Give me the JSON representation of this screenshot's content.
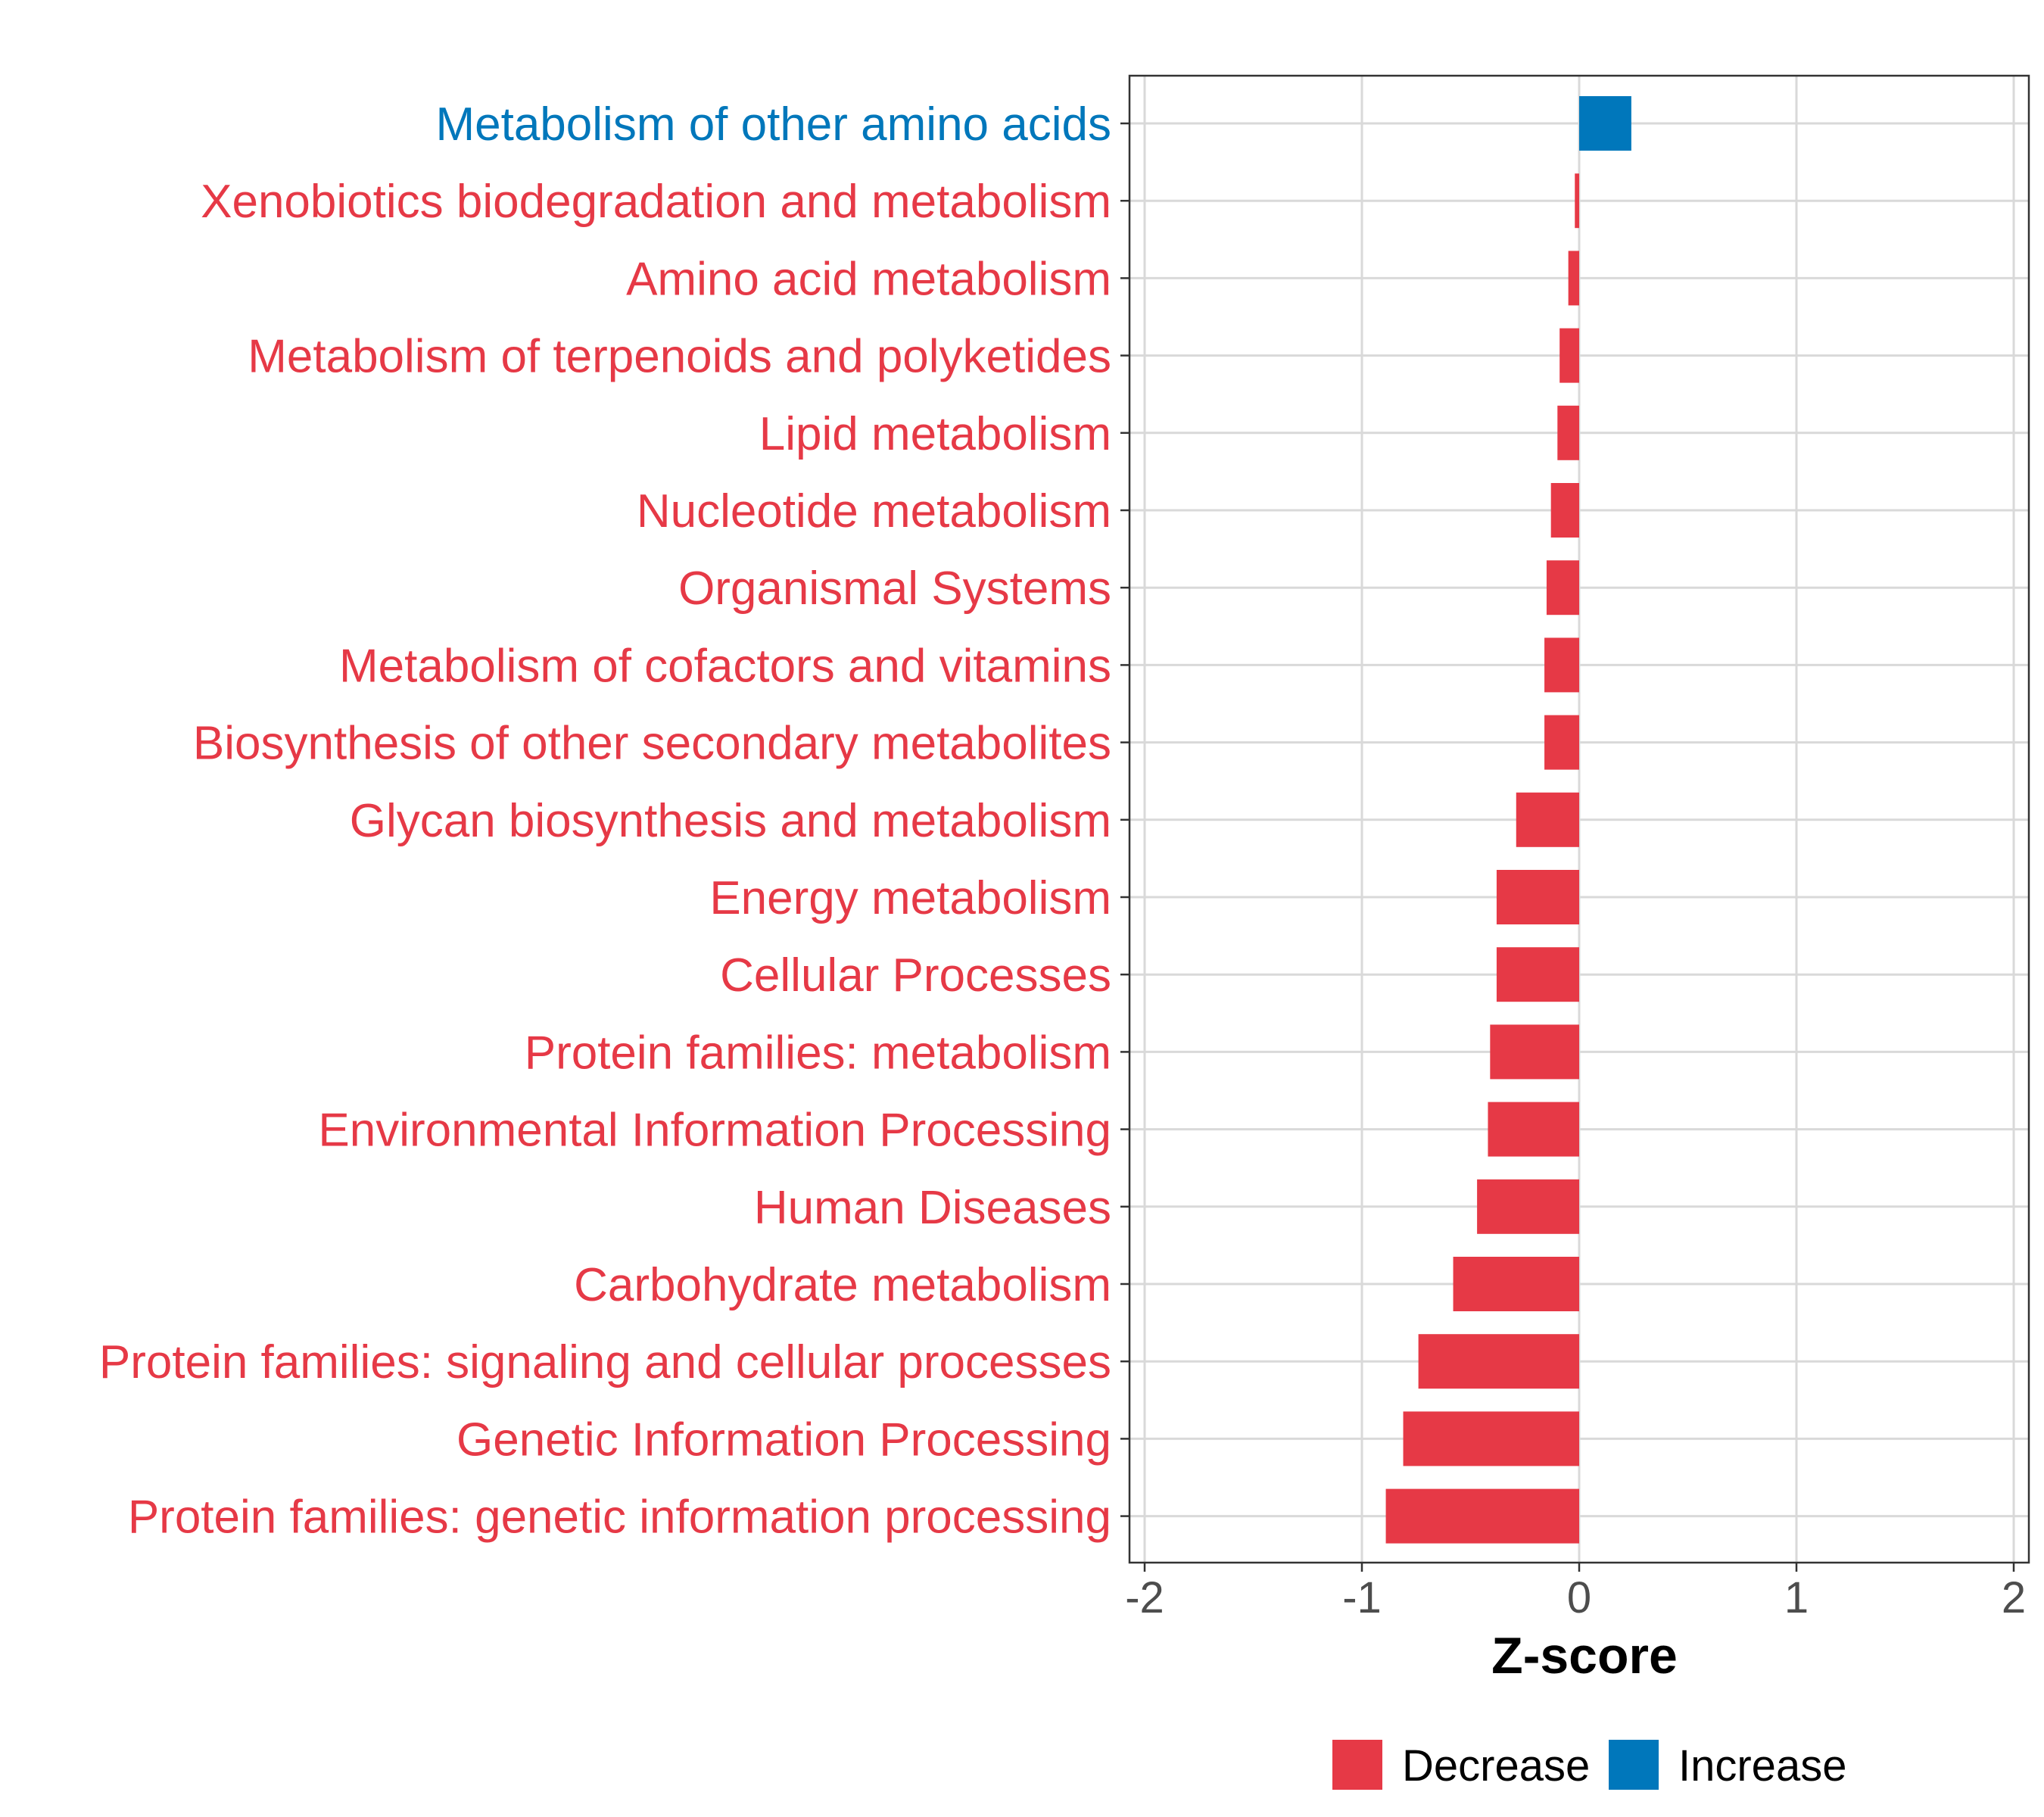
{
  "chart_data": {
    "type": "bar",
    "orientation": "horizontal",
    "xlabel": "Z-score",
    "xlim": [
      -2.0,
      2.0
    ],
    "xticks": [
      -2,
      -1,
      0,
      1,
      2
    ],
    "xtick_labels": [
      "-2",
      "-1",
      "0",
      "1",
      "2"
    ],
    "grid": true,
    "legend_position": "bottom",
    "colors": {
      "Decrease": "#e63946",
      "Increase": "#0077bb"
    },
    "legend": [
      {
        "label": "Decrease",
        "color": "#e63946"
      },
      {
        "label": "Increase",
        "color": "#0077bb"
      }
    ],
    "categories": [
      "Metabolism of other amino acids",
      "Xenobiotics biodegradation and metabolism",
      "Amino acid metabolism",
      "Metabolism of terpenoids and polyketides",
      "Lipid metabolism",
      "Nucleotide metabolism",
      "Organismal Systems",
      "Metabolism of cofactors and vitamins",
      "Biosynthesis of other secondary metabolites",
      "Glycan biosynthesis and metabolism",
      "Energy metabolism",
      "Cellular Processes",
      "Protein families: metabolism",
      "Environmental Information Processing",
      "Human Diseases",
      "Carbohydrate metabolism",
      "Protein families: signaling and cellular processes",
      "Genetic Information Processing",
      "Protein families: genetic information processing"
    ],
    "values": [
      0.24,
      -0.02,
      -0.05,
      -0.09,
      -0.1,
      -0.13,
      -0.15,
      -0.16,
      -0.16,
      -0.29,
      -0.38,
      -0.38,
      -0.41,
      -0.42,
      -0.47,
      -0.58,
      -0.74,
      -0.81,
      -0.89
    ],
    "groups": [
      "Increase",
      "Decrease",
      "Decrease",
      "Decrease",
      "Decrease",
      "Decrease",
      "Decrease",
      "Decrease",
      "Decrease",
      "Decrease",
      "Decrease",
      "Decrease",
      "Decrease",
      "Decrease",
      "Decrease",
      "Decrease",
      "Decrease",
      "Decrease",
      "Decrease"
    ]
  }
}
